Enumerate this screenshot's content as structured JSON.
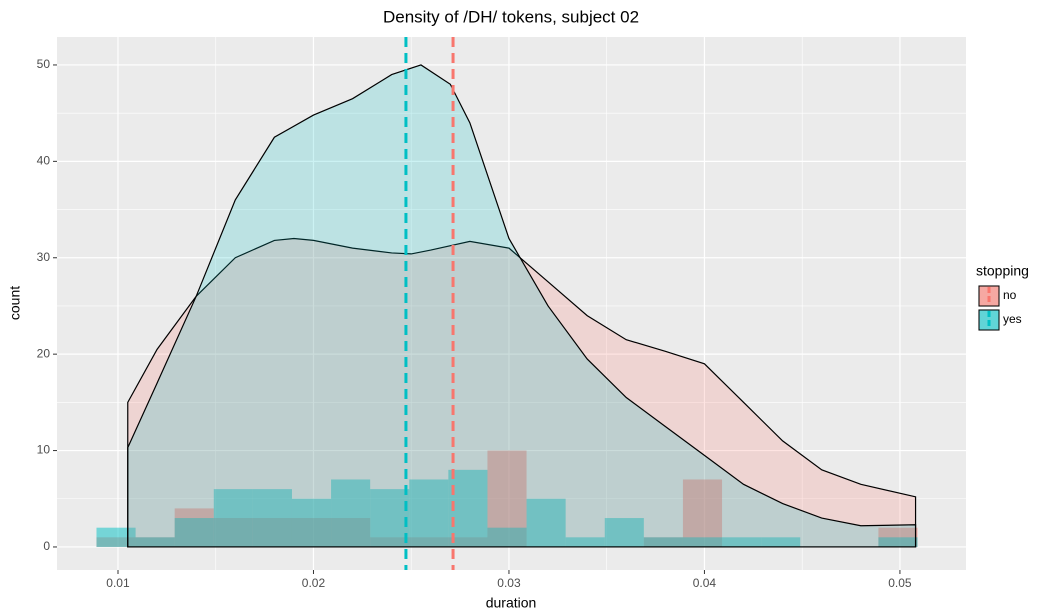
{
  "chart_data": {
    "type": "histogram",
    "title": "Density of /DH/ tokens, subject 02",
    "x_label": "duration",
    "y_label": "count",
    "legend_title": "stopping",
    "bins": [
      0.0089,
      0.0109,
      0.0129,
      0.0149,
      0.0169,
      0.0189,
      0.0209,
      0.0229,
      0.0249,
      0.0269,
      0.0289,
      0.0309,
      0.0329,
      0.0349,
      0.0369,
      0.0389,
      0.0409,
      0.0429,
      0.0449,
      0.0469,
      0.0489,
      0.0509
    ],
    "series": [
      {
        "name": "no",
        "color": "#F8766D",
        "values": [
          1,
          1,
          4,
          3,
          3,
          3,
          3,
          1,
          1,
          1,
          10,
          0,
          0,
          0,
          1,
          7,
          0,
          0,
          0,
          0,
          2
        ],
        "mean": 0.02714,
        "density": {
          "x": [
            0.0105,
            0.012,
            0.014,
            0.016,
            0.018,
            0.019,
            0.02,
            0.022,
            0.024,
            0.025,
            0.026,
            0.028,
            0.03,
            0.032,
            0.034,
            0.036,
            0.038,
            0.04,
            0.042,
            0.044,
            0.046,
            0.048,
            0.0508
          ],
          "values": [
            15,
            20.5,
            26,
            30,
            31.8,
            32,
            31.8,
            31,
            30.5,
            30.4,
            30.8,
            31.7,
            31,
            27.5,
            24,
            21.5,
            20.3,
            19,
            15,
            11,
            8,
            6.5,
            5.2
          ]
        }
      },
      {
        "name": "yes",
        "color": "#00BFC4",
        "values": [
          2,
          1,
          3,
          6,
          6,
          5,
          7,
          6,
          7,
          8,
          2,
          5,
          1,
          3,
          1,
          1,
          1,
          1,
          0,
          0,
          1
        ],
        "mean": 0.02473,
        "density": {
          "x": [
            0.0105,
            0.012,
            0.014,
            0.016,
            0.018,
            0.02,
            0.022,
            0.024,
            0.0255,
            0.027,
            0.028,
            0.029,
            0.03,
            0.032,
            0.034,
            0.036,
            0.038,
            0.04,
            0.042,
            0.044,
            0.046,
            0.048,
            0.0508
          ],
          "values": [
            10.3,
            17,
            26,
            36,
            42.5,
            44.8,
            46.5,
            49,
            50,
            48,
            44,
            38,
            32,
            25,
            19.5,
            15.5,
            12.5,
            9.5,
            6.5,
            4.5,
            3,
            2.2,
            2.3
          ]
        }
      }
    ],
    "xlim": [
      0.00688,
      0.05338
    ],
    "ylim": [
      -2.39,
      52.9
    ],
    "xticks": [
      0.01,
      0.02,
      0.03,
      0.04,
      0.05
    ],
    "yticks": [
      0,
      10,
      20,
      30,
      40,
      50
    ],
    "grid": true
  }
}
